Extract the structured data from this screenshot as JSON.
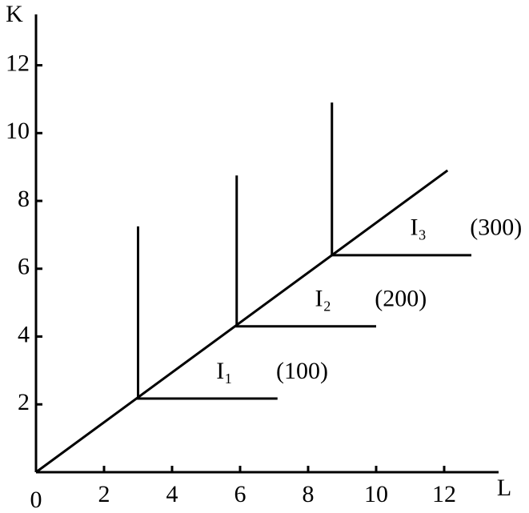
{
  "chart_data": {
    "type": "line",
    "x_label": "L",
    "y_label": "K",
    "origin_label": "0",
    "xlim": [
      0,
      13.6
    ],
    "ylim": [
      0,
      13.5
    ],
    "xticks": [
      2,
      4,
      6,
      8,
      10,
      12
    ],
    "yticks": [
      2,
      4,
      6,
      8,
      10,
      12
    ],
    "color": "#000000",
    "series": [
      {
        "x": [
          0,
          12.1
        ],
        "values": [
          0,
          8.9
        ]
      },
      {
        "name": "I₁",
        "output": 100,
        "output_label": "(100)",
        "x": [
          3,
          3,
          7.1
        ],
        "values": [
          7.25,
          2.17,
          2.17
        ]
      },
      {
        "name": "I₂",
        "output": 200,
        "output_label": "(200)",
        "x": [
          5.9,
          5.9,
          10
        ],
        "values": [
          8.75,
          4.3,
          4.3
        ]
      },
      {
        "name": "I₃",
        "output": 300,
        "output_label": "(300)",
        "x": [
          8.7,
          8.7,
          12.8
        ],
        "values": [
          10.9,
          6.4,
          6.4
        ]
      }
    ]
  }
}
